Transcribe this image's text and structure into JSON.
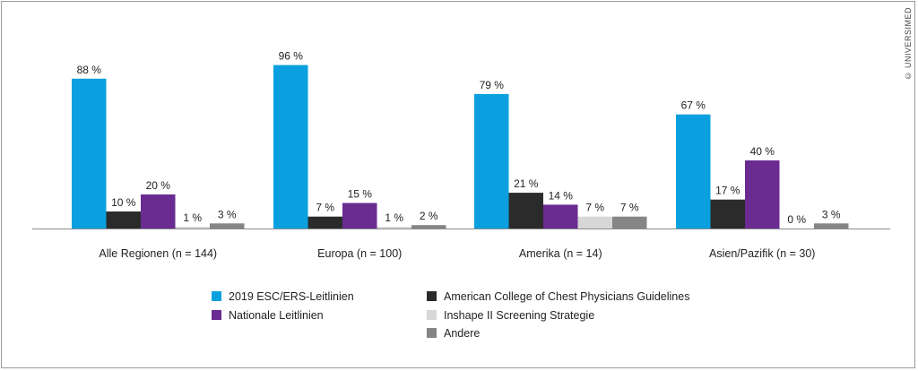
{
  "copyright": "© UNIVERSIMED",
  "chart_data": {
    "type": "bar",
    "categories": [
      "Alle Regionen (n = 144)",
      "Europa (n = 100)",
      "Amerika (n = 14)",
      "Asien/Pazifik (n = 30)"
    ],
    "series": [
      {
        "name": "2019 ESC/ERS-Leitlinien",
        "color": "#0aa0df",
        "values": [
          88,
          96,
          79,
          67
        ]
      },
      {
        "name": "American College of Chest Physicians Guidelines",
        "color": "#2b2b2b",
        "values": [
          10,
          7,
          21,
          17
        ]
      },
      {
        "name": "Nationale Leitlinien",
        "color": "#6a2c91",
        "values": [
          20,
          15,
          14,
          40
        ]
      },
      {
        "name": "Inshape II Screening Strategie",
        "color": "#d7d7d7",
        "values": [
          1,
          1,
          7,
          0
        ]
      },
      {
        "name": "Andere",
        "color": "#858585",
        "values": [
          3,
          2,
          7,
          3
        ]
      }
    ],
    "data_labels": [
      [
        "88 %",
        "10 %",
        "20 %",
        "1 %",
        "3 %"
      ],
      [
        "96 %",
        "7 %",
        "15 %",
        "1 %",
        "2 %"
      ],
      [
        "79 %",
        "21 %",
        "14 %",
        "7 %",
        "7 %"
      ],
      [
        "67 %",
        "17 %",
        "40 %",
        "0 %",
        "3 %"
      ]
    ],
    "ylim": [
      0,
      100
    ],
    "grid": false,
    "legend": {
      "position": "bottom",
      "columns": [
        [
          0,
          2
        ],
        [
          1,
          3,
          4
        ]
      ]
    }
  }
}
